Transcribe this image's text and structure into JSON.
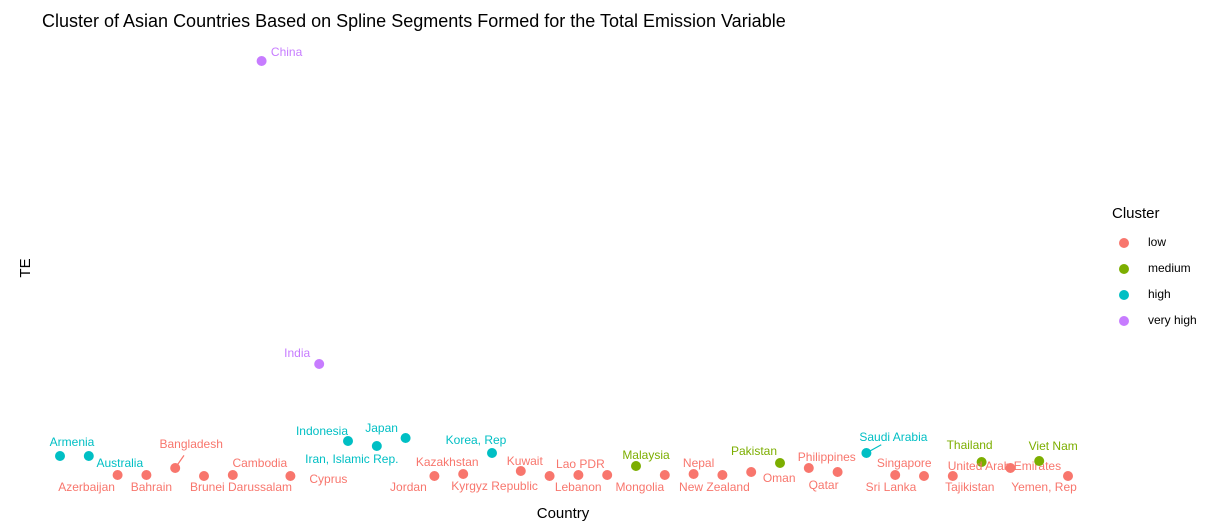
{
  "chart_data": {
    "type": "scatter",
    "title": "Cluster of Asian Countries Based on Spline Segments Formed for the Total Emission Variable",
    "x_label": "Country",
    "y_label": "TE",
    "categories": [
      "Armenia",
      "Australia",
      "Azerbaijan",
      "Bahrain",
      "Bangladesh",
      "Brunei Darussalam",
      "Cambodia",
      "China",
      "Cyprus",
      "India",
      "Indonesia",
      "Iran, Islamic Rep.",
      "Japan",
      "Jordan",
      "Kazakhstan",
      "Korea, Rep",
      "Kuwait",
      "Kyrgyz Republic",
      "Lao PDR",
      "Lebanon",
      "Malaysia",
      "Mongolia",
      "Nepal",
      "New Zealand",
      "Oman",
      "Pakistan",
      "Philippines",
      "Qatar",
      "Saudi Arabia",
      "Singapore",
      "Sri Lanka",
      "Tajikistan",
      "Thailand",
      "United Arab Emirates",
      "Viet Nam",
      "Yemen, Rep"
    ],
    "values": [
      6,
      6,
      1.25,
      1.25,
      3,
      1,
      1.25,
      104.75,
      1,
      29,
      9.75,
      8.5,
      10.5,
      1,
      1.5,
      6.75,
      2.25,
      1,
      1.25,
      1.25,
      3.5,
      1.25,
      1.5,
      1.25,
      2,
      4.25,
      3,
      2,
      6.75,
      1.25,
      1,
      1,
      4.5,
      3,
      4.75,
      1
    ],
    "cluster": [
      "high",
      "high",
      "low",
      "low",
      "low",
      "low",
      "low",
      "very high",
      "low",
      "very high",
      "high",
      "high",
      "high",
      "low",
      "low",
      "high",
      "low",
      "low",
      "low",
      "low",
      "medium",
      "low",
      "low",
      "low",
      "low",
      "medium",
      "low",
      "low",
      "high",
      "low",
      "low",
      "low",
      "medium",
      "low",
      "medium",
      "low"
    ],
    "ylim": [
      0,
      110
    ],
    "legend": {
      "title": "Cluster",
      "position": "right",
      "entries": [
        {
          "name": "low",
          "color": "#F8766D"
        },
        {
          "name": "medium",
          "color": "#7CAE00"
        },
        {
          "name": "high",
          "color": "#00BFC4"
        },
        {
          "name": "very high",
          "color": "#C77CFF"
        }
      ]
    }
  }
}
